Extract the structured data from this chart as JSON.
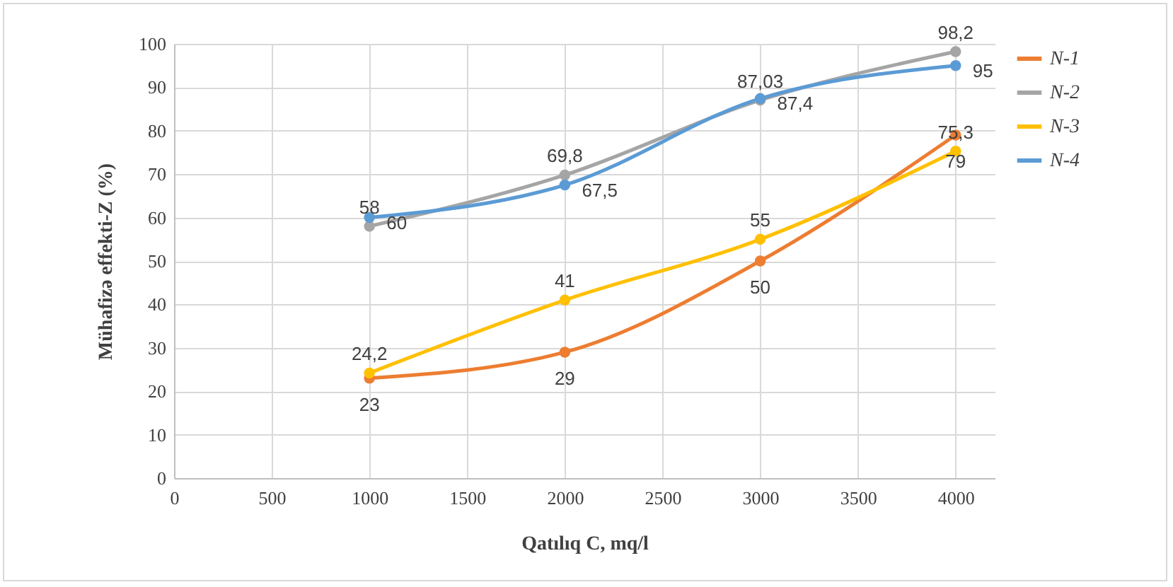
{
  "chart_data": {
    "type": "line",
    "xlabel": "Qatılıq C, mq/l",
    "ylabel": "Mühafizə effekti-Z (%)",
    "x": [
      1000,
      2000,
      3000,
      4000
    ],
    "series": [
      {
        "name": "N-1",
        "color": "#ed7d31",
        "values": [
          23,
          29,
          50,
          79
        ],
        "value_labels": [
          "23",
          "29",
          "50",
          "79"
        ]
      },
      {
        "name": "N-2",
        "color": "#a5a5a5",
        "values": [
          58,
          69.8,
          87.03,
          98.2
        ],
        "value_labels": [
          "58",
          "69,8",
          "87,03",
          "98,2"
        ]
      },
      {
        "name": "N-3",
        "color": "#ffc000",
        "values": [
          24.2,
          41,
          55,
          75.3
        ],
        "value_labels": [
          "24,2",
          "41",
          "55",
          "75,3"
        ]
      },
      {
        "name": "N-4",
        "color": "#5b9bd5",
        "values": [
          60,
          67.5,
          87.4,
          95
        ],
        "value_labels": [
          "60",
          "67,5",
          "87,4",
          "95"
        ]
      }
    ],
    "xlim": [
      0,
      4200
    ],
    "xticks": [
      0,
      500,
      1000,
      1500,
      2000,
      2500,
      3000,
      3500,
      4000
    ],
    "ylim": [
      0,
      100
    ],
    "yticks": [
      0,
      10,
      20,
      30,
      40,
      50,
      60,
      70,
      80,
      90,
      100
    ],
    "grid": true,
    "legend": "right",
    "marker": "circle",
    "line_style": "solid"
  }
}
